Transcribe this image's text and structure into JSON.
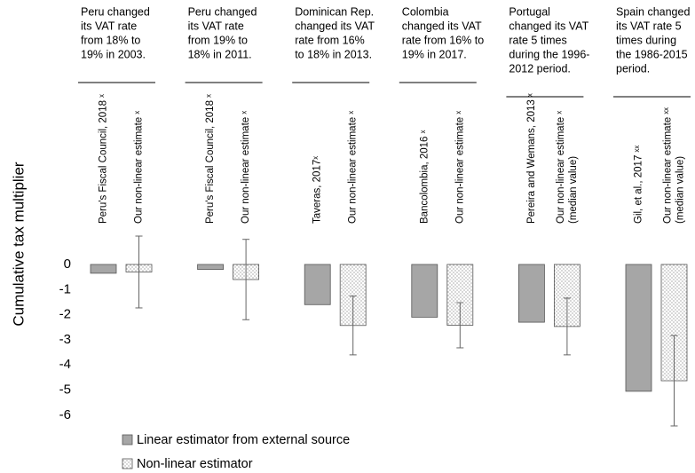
{
  "chart_data": {
    "type": "bar",
    "y_label": "Cumulative tax multiplier",
    "annotations": [
      [
        "Peru changed",
        "its VAT rate",
        "from 18% to",
        "19% in 2003."
      ],
      [
        "Peru changed",
        "its VAT rate",
        "from 19% to",
        "18% in 2011."
      ],
      [
        "Dominican Rep.",
        "changed its VAT",
        "rate from 16%",
        "to 18% in 2013."
      ],
      [
        "Colombia",
        "changed its VAT",
        "rate from 16% to",
        "19% in 2017."
      ],
      [
        "Portugal",
        "changed its VAT",
        "rate 5 times",
        "during the 1996-",
        "2012 period."
      ],
      [
        "Spain changed",
        "its VAT rate 5",
        "times during",
        "the 1986-2015",
        "period."
      ]
    ],
    "series": [
      {
        "name": "Linear estimator from external source",
        "color": "#a6a6a6",
        "labels": [
          [
            "Peru's Fiscal Council, 2018 ˣ"
          ],
          [
            "Peru's Fiscal Council, 2018 ˣ"
          ],
          [
            "Taveras, 2017ˣ"
          ],
          [
            "Bancolombia, 2016 ˣ"
          ],
          [
            "Pereira and Wemans, 2013 ˣ"
          ],
          [
            "Gil, et al., 2017 ˣˣ"
          ]
        ],
        "values": [
          -0.35,
          -0.2,
          -1.6,
          -2.1,
          -2.3,
          -5.05
        ]
      },
      {
        "name": "Non-linear estimator",
        "color": "#ffffff",
        "pattern": "dots",
        "labels": [
          [
            "Our non-linear estimate ˣ"
          ],
          [
            "Our non-linear estimate ˣ"
          ],
          [
            "Our non-linear estimate ˣ"
          ],
          [
            "Our non-linear estimate ˣ"
          ],
          [
            "Our non-linear estimate ˣ",
            "(median value)"
          ],
          [
            "Our non-linear estimate ˣˣ",
            "(median value)"
          ]
        ],
        "values": [
          -0.3,
          -0.6,
          -2.43,
          -2.42,
          -2.47,
          -4.63
        ],
        "errors": [
          1.43,
          1.6,
          1.17,
          0.9,
          1.13,
          1.8
        ]
      }
    ],
    "ylim": [
      -6.5,
      1.2
    ],
    "yticks": [
      0,
      -1,
      -2,
      -3,
      -4,
      -5,
      -6
    ]
  }
}
